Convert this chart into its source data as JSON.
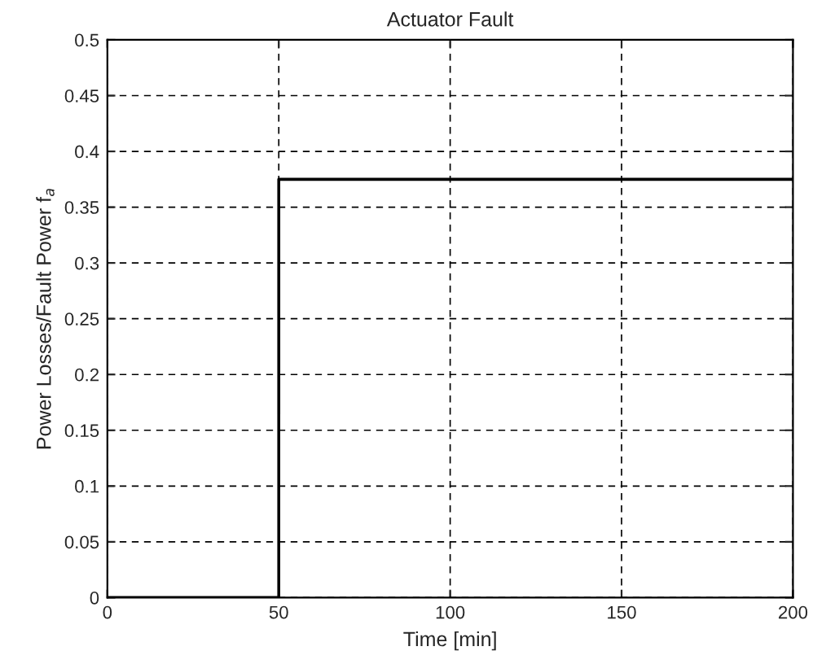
{
  "chart_data": {
    "type": "step",
    "title": "Actuator Fault",
    "xlabel": "Time [min]",
    "ylabel": "Power Losses/Fault Power f$_{a}$",
    "x": [
      0,
      50,
      200
    ],
    "series": [
      {
        "color": "#000000",
        "values": [
          0,
          0.375,
          0.375
        ]
      }
    ],
    "xlim": [
      0,
      200
    ],
    "xticks": [
      0,
      50,
      100,
      150,
      200
    ],
    "ylim": [
      0,
      0.5
    ],
    "yticks": [
      0,
      0.05,
      0.1,
      0.15,
      0.2,
      0.25,
      0.3,
      0.35,
      0.4,
      0.45,
      0.5
    ],
    "grid": true,
    "line_style": "solid",
    "marker": "none"
  }
}
